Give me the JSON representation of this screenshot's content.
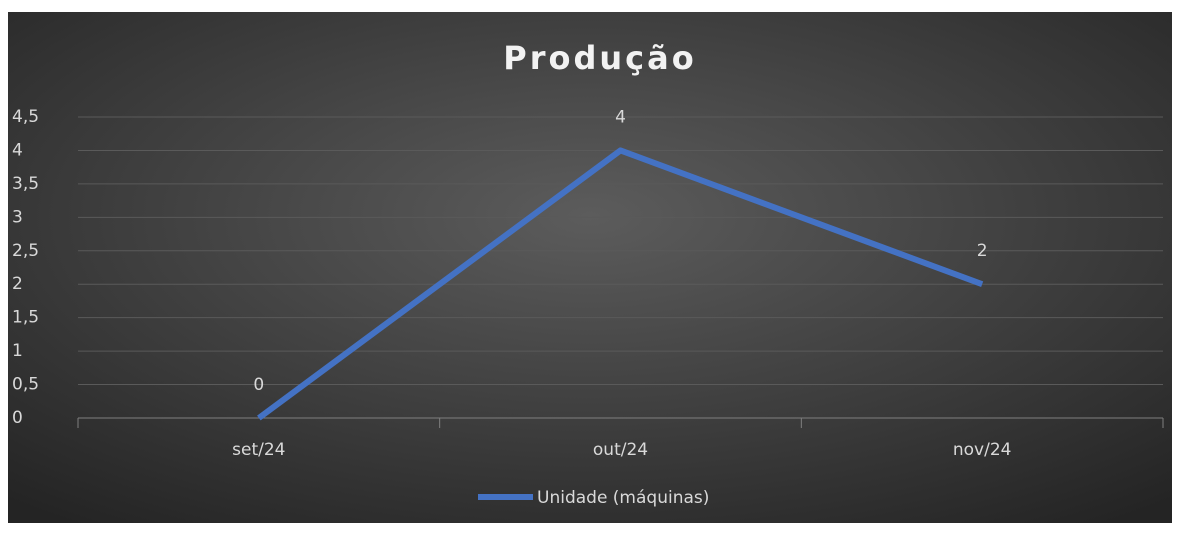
{
  "chart_data": {
    "type": "line",
    "title": "Produção",
    "categories": [
      "set/24",
      "out/24",
      "nov/24"
    ],
    "series": [
      {
        "name": "Unidade (máquinas)",
        "color": "#4472c4",
        "values": [
          0,
          4,
          2
        ]
      }
    ],
    "ylim": [
      0,
      4.5
    ],
    "yticks": [
      0,
      {
        "value": 0.5,
        "label": "0,5"
      },
      1,
      {
        "value": 1.5,
        "label": "1,5"
      },
      2,
      {
        "value": 2.5,
        "label": "2,5"
      },
      3,
      {
        "value": 3.5,
        "label": "3,5"
      },
      4,
      {
        "value": 4.5,
        "label": "4,5"
      }
    ],
    "grid": true,
    "legend": "bottom"
  }
}
